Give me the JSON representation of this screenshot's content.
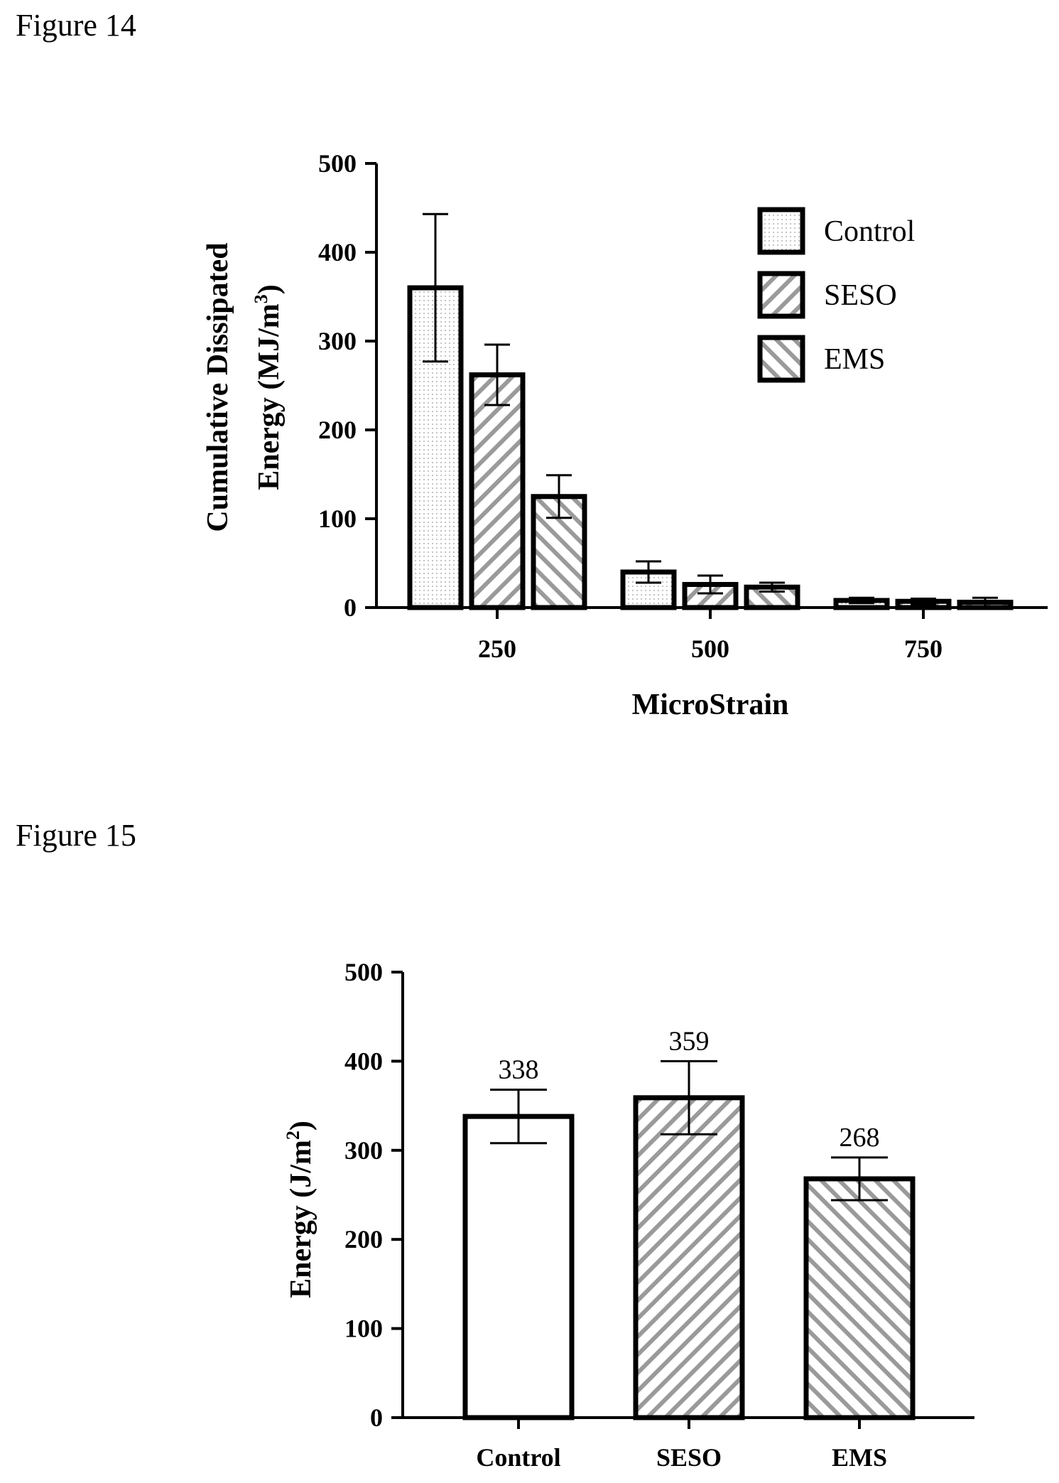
{
  "figures": {
    "fig14_label": "Figure 14",
    "fig15_label": "Figure 15"
  },
  "chart_data": [
    {
      "type": "bar",
      "categories": [
        "250",
        "500",
        "750"
      ],
      "series": [
        {
          "name": "Control",
          "values": [
            360,
            40,
            8
          ],
          "errors": [
            83,
            12,
            3
          ],
          "pattern": "dots"
        },
        {
          "name": "SESO",
          "values": [
            262,
            26,
            7
          ],
          "errors": [
            34,
            10,
            3
          ],
          "pattern": "hatch-down"
        },
        {
          "name": "EMS",
          "values": [
            125,
            23,
            6
          ],
          "errors": [
            24,
            5,
            5
          ],
          "pattern": "hatch-up"
        }
      ],
      "xlabel": "MicroStrain",
      "ylabel_line1": "Cumulative Dissipated",
      "ylabel_line2_main": "Energy (MJ/m",
      "ylabel_line2_sup": "3",
      "ylabel_line2_end": ")",
      "ylim": [
        0,
        500
      ],
      "yticks": [
        "0",
        "100",
        "200",
        "300",
        "400",
        "500"
      ],
      "legend_position": "top-right",
      "grid": false
    },
    {
      "type": "bar",
      "categories": [
        "Control",
        "SESO",
        "EMS"
      ],
      "values": [
        338,
        359,
        268
      ],
      "errors": [
        30,
        41,
        24
      ],
      "data_labels": [
        "338",
        "359",
        "268"
      ],
      "patterns": [
        "none",
        "hatch-down",
        "hatch-up"
      ],
      "xlabel": "",
      "ylabel_main": "Energy  (J/m",
      "ylabel_sup": "2",
      "ylabel_end": ")",
      "ylim": [
        0,
        500
      ],
      "yticks": [
        "0",
        "100",
        "200",
        "300",
        "400",
        "500"
      ],
      "grid": false
    }
  ]
}
